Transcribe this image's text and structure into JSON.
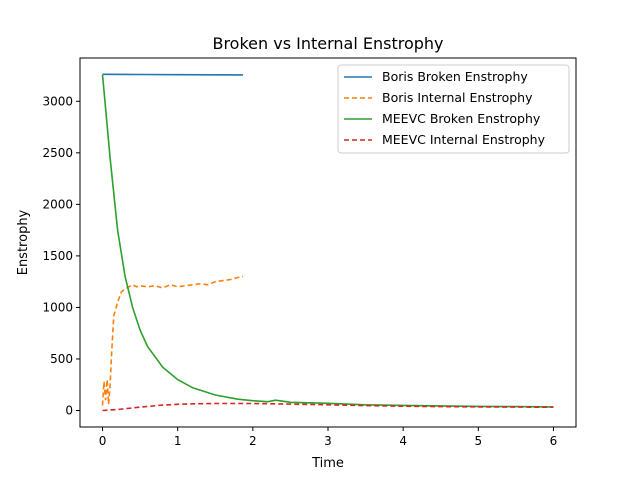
{
  "chart_data": {
    "type": "line",
    "title": "Broken vs Internal Enstrophy",
    "xlabel": "Time",
    "ylabel": "Enstrophy",
    "xlim": [
      -0.3,
      6.3
    ],
    "ylim": [
      -160,
      3420
    ],
    "xticks": [
      0,
      1,
      2,
      3,
      4,
      5,
      6
    ],
    "yticks": [
      0,
      500,
      1000,
      1500,
      2000,
      2500,
      3000
    ],
    "grid": false,
    "legend_position": "top-right",
    "series": [
      {
        "name": "Boris Broken Enstrophy",
        "color": "#1f77b4",
        "style": "solid",
        "x": [
          0,
          0.5,
          1.0,
          1.5,
          1.87
        ],
        "y": [
          3262,
          3260,
          3258,
          3257,
          3256
        ]
      },
      {
        "name": "Boris Internal Enstrophy",
        "color": "#ff7f0e",
        "style": "dashed",
        "x": [
          0,
          0.02,
          0.04,
          0.06,
          0.08,
          0.1,
          0.12,
          0.15,
          0.2,
          0.25,
          0.3,
          0.35,
          0.4,
          0.45,
          0.5,
          0.6,
          0.7,
          0.8,
          0.9,
          1.0,
          1.1,
          1.2,
          1.3,
          1.4,
          1.5,
          1.6,
          1.7,
          1.8,
          1.87
        ],
        "y": [
          50,
          280,
          100,
          300,
          60,
          250,
          550,
          920,
          1050,
          1150,
          1180,
          1200,
          1220,
          1200,
          1210,
          1200,
          1210,
          1190,
          1220,
          1200,
          1210,
          1220,
          1230,
          1220,
          1250,
          1260,
          1270,
          1290,
          1300
        ]
      },
      {
        "name": "MEEVC Broken Enstrophy",
        "color": "#2ca02c",
        "style": "solid",
        "x": [
          0,
          0.1,
          0.2,
          0.3,
          0.4,
          0.5,
          0.6,
          0.8,
          1.0,
          1.2,
          1.5,
          1.8,
          2.0,
          2.2,
          2.3,
          2.4,
          2.5,
          3.0,
          3.5,
          4.0,
          4.5,
          5.0,
          5.5,
          6.0
        ],
        "y": [
          3260,
          2450,
          1750,
          1300,
          1000,
          780,
          620,
          420,
          300,
          220,
          150,
          110,
          95,
          85,
          100,
          90,
          80,
          70,
          55,
          50,
          45,
          40,
          38,
          35
        ]
      },
      {
        "name": "MEEVC Internal Enstrophy",
        "color": "#d62728",
        "style": "dashed",
        "x": [
          0,
          0.2,
          0.4,
          0.6,
          0.8,
          1.0,
          1.2,
          1.5,
          2.0,
          2.5,
          3.0,
          3.5,
          4.0,
          4.5,
          5.0,
          5.5,
          6.0
        ],
        "y": [
          0,
          10,
          25,
          40,
          52,
          60,
          65,
          68,
          68,
          62,
          55,
          48,
          42,
          38,
          35,
          33,
          32
        ]
      }
    ]
  }
}
